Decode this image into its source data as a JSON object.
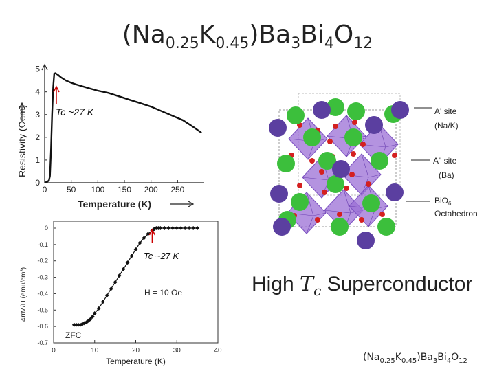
{
  "slide": {
    "title": {
      "pre": "(Na",
      "s1": "0.25",
      "mid": "K",
      "s2": "0.45",
      "post1": ")Ba",
      "s3": "3",
      "post2": "Bi",
      "s4": "4",
      "post3": "O",
      "s5": "12"
    },
    "caption": {
      "pre": "High ",
      "t": "T",
      "c": "c",
      "post": " Superconductor"
    }
  },
  "chart_data": [
    {
      "type": "line",
      "xlabel": "Temperature (K)",
      "ylabel": "Resistivity (Ωcm)",
      "xlim": [
        0,
        300
      ],
      "ylim": [
        0,
        5.2
      ],
      "xticks": [
        0,
        50,
        100,
        150,
        200,
        250
      ],
      "yticks": [
        0,
        1,
        2,
        3,
        4,
        5
      ],
      "annotation": "Tc ~27 K",
      "x": [
        0,
        5,
        8,
        10,
        12,
        14,
        16,
        18,
        20,
        25,
        30,
        40,
        50,
        60,
        80,
        100,
        120,
        140,
        160,
        180,
        200,
        220,
        240,
        260,
        280,
        295
      ],
      "y": [
        0,
        0.05,
        0.1,
        0.3,
        1.5,
        3.0,
        4.2,
        4.8,
        4.82,
        4.75,
        4.65,
        4.5,
        4.4,
        4.32,
        4.18,
        4.05,
        3.95,
        3.8,
        3.65,
        3.5,
        3.35,
        3.15,
        2.95,
        2.75,
        2.45,
        2.2
      ],
      "grid": false
    },
    {
      "type": "scatter",
      "xlabel": "Temperature (K)",
      "ylabel": "4πM/H (emu/cm³)",
      "xlim": [
        0,
        40
      ],
      "ylim": [
        -0.7,
        0.05
      ],
      "xticks": [
        0,
        10,
        20,
        30,
        40
      ],
      "yticks": [
        0,
        -0.1,
        -0.2,
        -0.3,
        -0.4,
        -0.5,
        -0.6,
        -0.7
      ],
      "ytick_labels": [
        "0",
        "-0.1",
        "-0.2",
        "-0.3",
        "-0.4",
        "-0.5",
        "-0.6",
        "-0.7"
      ],
      "annotations": [
        "Tc ~27 K",
        "H = 10 Oe",
        "ZFC"
      ],
      "x": [
        5,
        5.5,
        6,
        6.5,
        7,
        7.5,
        8,
        8.5,
        9,
        9.5,
        10,
        11,
        12,
        13,
        14,
        15,
        16,
        17,
        18,
        19,
        20,
        21,
        22,
        23,
        24,
        24.5,
        25,
        25.5,
        26,
        27,
        28,
        29,
        30,
        31,
        32,
        33,
        34,
        35
      ],
      "y": [
        -0.59,
        -0.59,
        -0.59,
        -0.59,
        -0.585,
        -0.58,
        -0.575,
        -0.565,
        -0.555,
        -0.54,
        -0.52,
        -0.49,
        -0.45,
        -0.41,
        -0.37,
        -0.33,
        -0.29,
        -0.25,
        -0.21,
        -0.17,
        -0.13,
        -0.09,
        -0.06,
        -0.035,
        -0.015,
        -0.005,
        0,
        0,
        0,
        0,
        0,
        0,
        0,
        0,
        0,
        0,
        0,
        0
      ],
      "grid": false
    }
  ],
  "crystal": {
    "labels": {
      "a1": "A' site",
      "a1b": "(Na/K)",
      "a2": "A\" site",
      "a2b": "(Ba)",
      "b1": "BiO",
      "b1sub": "6",
      "b2": "Octahedron"
    },
    "colors": {
      "a_site": "#5b3fa0",
      "ba_site": "#3cbf3c",
      "oxygen": "#d42020",
      "octahedron": "#9b6fd6"
    }
  },
  "footer": {
    "pre": "(Na",
    "s1": "0.25",
    "mid": "K",
    "s2": "0.45",
    "post1": ")Ba",
    "s3": "3",
    "post2": "Bi",
    "s4": "4",
    "post3": "O",
    "s5": "12"
  }
}
